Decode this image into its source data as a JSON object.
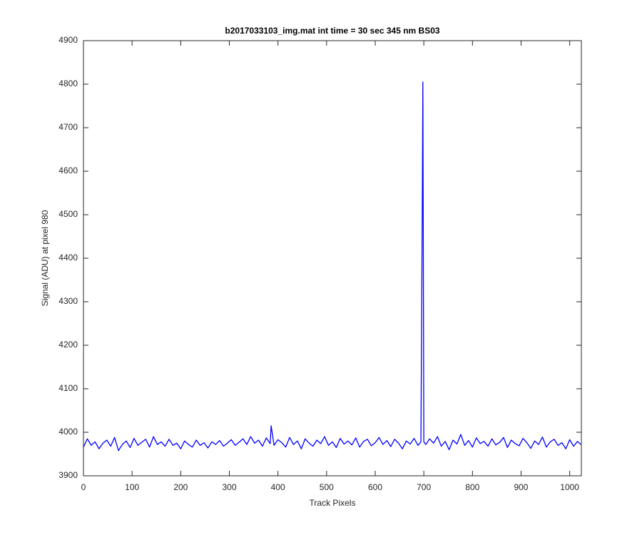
{
  "chart_data": {
    "type": "line",
    "title": "b2017033103_img.mat int time = 30 sec  345 nm BS03",
    "x_label": "Track Pixels",
    "y_label": "Signal (ADU) at pixel 980",
    "xlim": [
      0,
      1024
    ],
    "xticks": [
      0,
      100,
      200,
      300,
      400,
      500,
      600,
      700,
      800,
      900,
      1000
    ],
    "ylim": [
      3900,
      4900
    ],
    "yticks": [
      3900,
      4000,
      4100,
      4200,
      4300,
      4400,
      4500,
      4600,
      4700,
      4800,
      4900
    ],
    "grid": false,
    "series": [
      {
        "color": "#0000ff",
        "x": [
          0,
          8,
          16,
          24,
          32,
          40,
          48,
          56,
          64,
          72,
          80,
          88,
          96,
          104,
          112,
          120,
          128,
          136,
          144,
          152,
          160,
          168,
          176,
          184,
          192,
          200,
          208,
          216,
          224,
          232,
          240,
          248,
          256,
          264,
          272,
          280,
          288,
          296,
          304,
          312,
          320,
          328,
          336,
          344,
          352,
          360,
          368,
          376,
          384,
          386,
          392,
          400,
          408,
          416,
          424,
          432,
          440,
          448,
          456,
          464,
          472,
          480,
          488,
          496,
          504,
          512,
          520,
          528,
          536,
          544,
          552,
          560,
          568,
          576,
          584,
          592,
          600,
          608,
          616,
          624,
          632,
          640,
          648,
          656,
          664,
          672,
          680,
          688,
          694,
          697,
          698,
          700,
          704,
          712,
          720,
          728,
          736,
          744,
          752,
          760,
          768,
          776,
          784,
          792,
          800,
          808,
          816,
          824,
          832,
          840,
          848,
          856,
          864,
          872,
          880,
          888,
          896,
          904,
          912,
          920,
          928,
          936,
          944,
          952,
          960,
          968,
          976,
          984,
          992,
          1000,
          1008,
          1016,
          1023
        ],
        "values": [
          3966,
          3985,
          3970,
          3978,
          3962,
          3975,
          3982,
          3968,
          3988,
          3958,
          3972,
          3980,
          3965,
          3986,
          3970,
          3977,
          3984,
          3966,
          3990,
          3972,
          3978,
          3968,
          3984,
          3970,
          3975,
          3962,
          3980,
          3972,
          3966,
          3982,
          3970,
          3976,
          3964,
          3978,
          3972,
          3981,
          3968,
          3975,
          3983,
          3970,
          3977,
          3985,
          3972,
          3990,
          3975,
          3982,
          3968,
          3987,
          3974,
          4015,
          3970,
          3983,
          3976,
          3966,
          3988,
          3972,
          3980,
          3962,
          3985,
          3975,
          3968,
          3982,
          3974,
          3990,
          3970,
          3978,
          3965,
          3986,
          3973,
          3980,
          3971,
          3987,
          3966,
          3979,
          3984,
          3969,
          3976,
          3988,
          3972,
          3981,
          3967,
          3984,
          3975,
          3962,
          3980,
          3973,
          3986,
          3970,
          3978,
          4550,
          4805,
          3978,
          3972,
          3985,
          3975,
          3990,
          3968,
          3979,
          3960,
          3982,
          3973,
          3995,
          3970,
          3981,
          3966,
          3987,
          3974,
          3979,
          3968,
          3985,
          3971,
          3977,
          3988,
          3965,
          3982,
          3974,
          3969,
          3986,
          3976,
          3963,
          3980,
          3972,
          3989,
          3966,
          3978,
          3984,
          3970,
          3976,
          3962,
          3983,
          3968,
          3979,
          3972
        ]
      }
    ]
  }
}
